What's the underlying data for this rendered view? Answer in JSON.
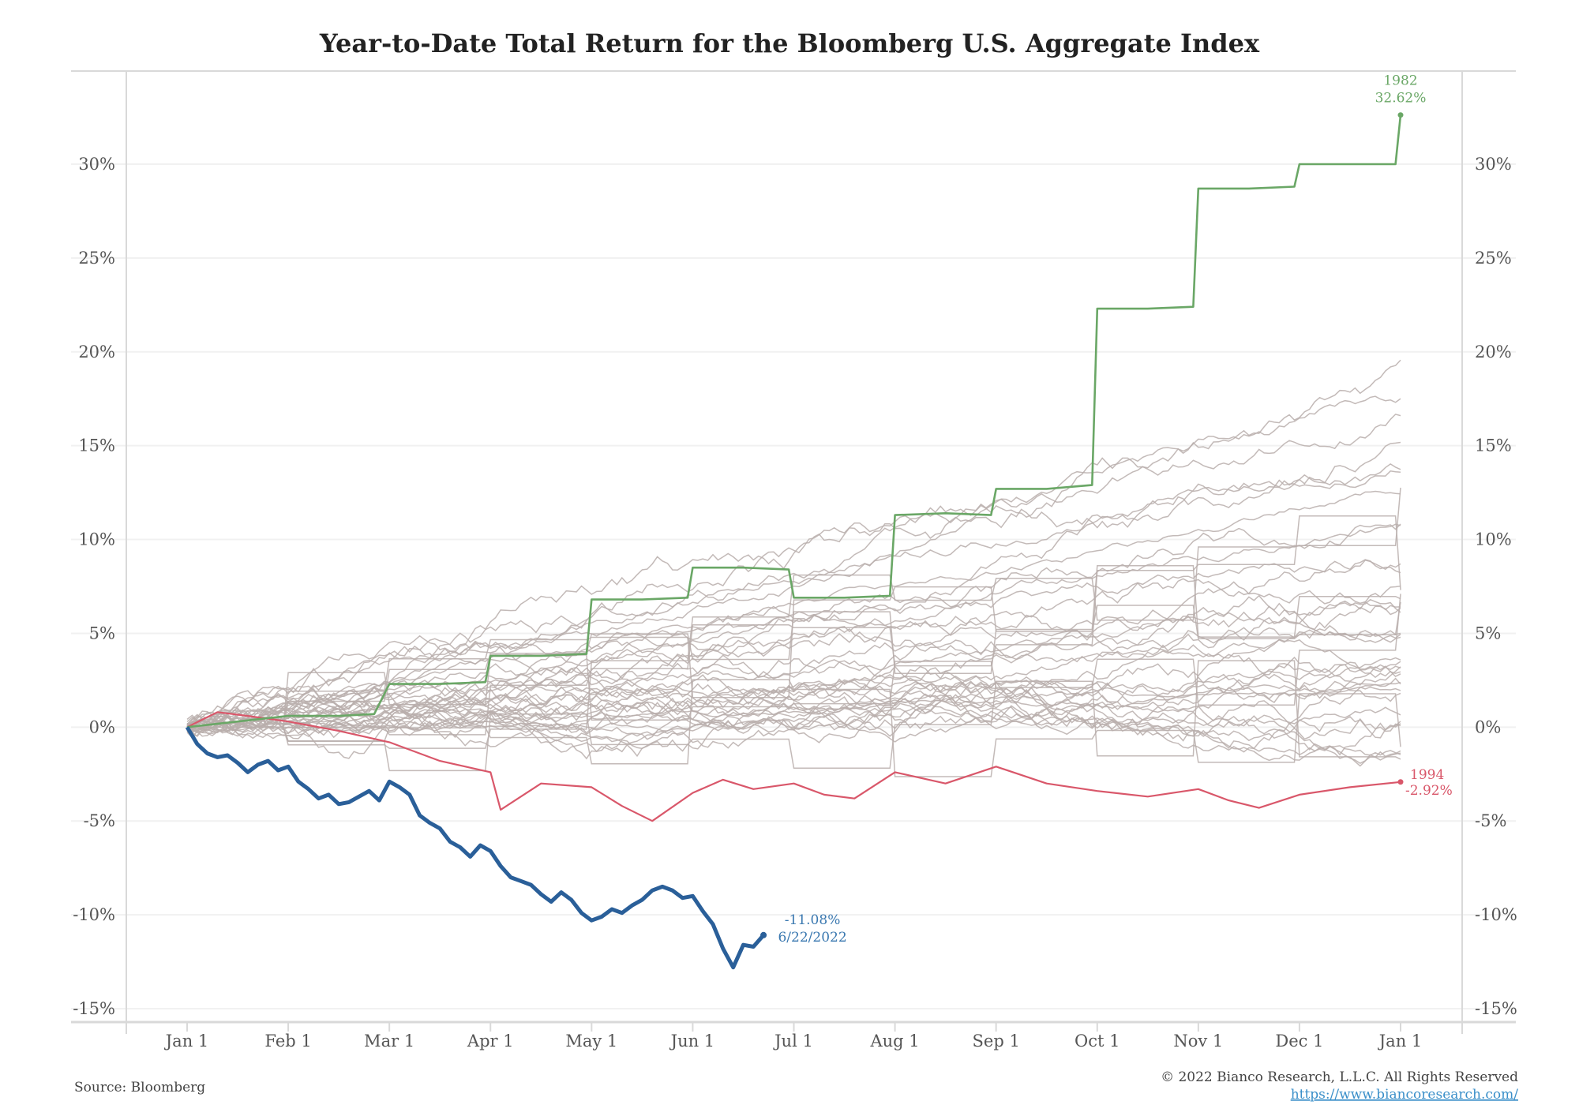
{
  "chart_data": {
    "type": "line",
    "title": "Year-to-Date Total Return for the Bloomberg U.S. Aggregate Index",
    "x_tick_labels": [
      "Jan 1",
      "Feb 1",
      "Mar 1",
      "Apr 1",
      "May 1",
      "Jun 1",
      "Jul 1",
      "Aug 1",
      "Sep 1",
      "Oct 1",
      "Nov 1",
      "Dec 1",
      "Jan 1"
    ],
    "y_tick_labels": [
      "30%",
      "25%",
      "20%",
      "15%",
      "10%",
      "5%",
      "0%",
      "-5%",
      "-10%",
      "-15%"
    ],
    "y_ticks": [
      30,
      25,
      20,
      15,
      10,
      5,
      0,
      -5,
      -10,
      -15
    ],
    "ylim": [
      -15,
      35
    ],
    "xlim_months": [
      0,
      12
    ],
    "grid": true,
    "colors": {
      "history": "#b8aeac",
      "y1982": "#6aa766",
      "y1994": "#d9576a",
      "y2022": "#2a5f99",
      "axis": "#d9d9d9",
      "grid": "#f1f1f1"
    },
    "series_1982": {
      "x_months": [
        0,
        0.5,
        1,
        1.5,
        1.85,
        2,
        2.5,
        2.95,
        3,
        3.5,
        3.95,
        4,
        4.5,
        4.95,
        5,
        5.5,
        5.95,
        6,
        6.5,
        6.95,
        7,
        7.5,
        7.95,
        8,
        8.5,
        8.95,
        9,
        9.5,
        9.95,
        10,
        10.5,
        10.95,
        11,
        11.5,
        11.95,
        12
      ],
      "y": [
        0,
        0.3,
        0.6,
        0.6,
        0.7,
        2.3,
        2.3,
        2.4,
        3.8,
        3.8,
        3.9,
        6.8,
        6.8,
        6.9,
        8.5,
        8.5,
        8.4,
        6.9,
        6.9,
        7.0,
        11.3,
        11.4,
        11.3,
        12.7,
        12.7,
        12.9,
        22.3,
        22.3,
        22.4,
        28.7,
        28.7,
        28.8,
        30.0,
        30.0,
        30.0,
        32.62
      ]
    },
    "series_1994": {
      "x_months": [
        0,
        0.3,
        0.6,
        1,
        1.5,
        2,
        2.5,
        3,
        3.1,
        3.5,
        4,
        4.3,
        4.6,
        5,
        5.3,
        5.6,
        6,
        6.3,
        6.6,
        7,
        7.5,
        8,
        8.5,
        9,
        9.5,
        10,
        10.3,
        10.6,
        11,
        11.5,
        12
      ],
      "y": [
        0,
        0.8,
        0.6,
        0.3,
        -0.2,
        -0.8,
        -1.8,
        -2.4,
        -4.4,
        -3.0,
        -3.2,
        -4.2,
        -5.0,
        -3.5,
        -2.8,
        -3.3,
        -3.0,
        -3.6,
        -3.8,
        -2.4,
        -3.0,
        -2.1,
        -3.0,
        -3.4,
        -3.7,
        -3.3,
        -3.9,
        -4.3,
        -3.6,
        -3.2,
        -2.92
      ]
    },
    "series_2022": {
      "x_months": [
        0,
        0.1,
        0.2,
        0.3,
        0.4,
        0.5,
        0.6,
        0.7,
        0.8,
        0.9,
        1.0,
        1.1,
        1.2,
        1.3,
        1.4,
        1.5,
        1.6,
        1.7,
        1.8,
        1.9,
        2.0,
        2.1,
        2.2,
        2.3,
        2.4,
        2.5,
        2.6,
        2.7,
        2.8,
        2.9,
        3.0,
        3.1,
        3.2,
        3.3,
        3.4,
        3.5,
        3.6,
        3.7,
        3.8,
        3.9,
        4.0,
        4.1,
        4.2,
        4.3,
        4.4,
        4.5,
        4.6,
        4.7,
        4.8,
        4.9,
        5.0,
        5.1,
        5.2,
        5.3,
        5.4,
        5.5,
        5.6,
        5.7
      ],
      "y": [
        0,
        -0.9,
        -1.4,
        -1.6,
        -1.5,
        -1.9,
        -2.4,
        -2.0,
        -1.8,
        -2.3,
        -2.1,
        -2.9,
        -3.3,
        -3.8,
        -3.6,
        -4.1,
        -4.0,
        -3.7,
        -3.4,
        -3.9,
        -2.9,
        -3.2,
        -3.6,
        -4.7,
        -5.1,
        -5.4,
        -6.1,
        -6.4,
        -6.9,
        -6.3,
        -6.6,
        -7.4,
        -8.0,
        -8.2,
        -8.4,
        -8.9,
        -9.3,
        -8.8,
        -9.2,
        -9.9,
        -10.3,
        -10.1,
        -9.7,
        -9.9,
        -9.5,
        -9.2,
        -8.7,
        -8.5,
        -8.7,
        -9.1,
        -9.0,
        -9.8,
        -10.5,
        -11.8,
        -12.8,
        -11.6,
        -11.7,
        -11.08
      ]
    },
    "annotations": {
      "y1982_year": "1982",
      "y1982_value": "32.62%",
      "y1994_year": "1994",
      "y1994_value": "-2.92%",
      "y2022_value": "-11.08%",
      "y2022_date": "6/22/2022"
    },
    "source": "Source: Bloomberg",
    "copyright": "© 2022 Bianco Research, L.L.C. All Rights Reserved",
    "url": "https://www.biancoresearch.com/"
  }
}
